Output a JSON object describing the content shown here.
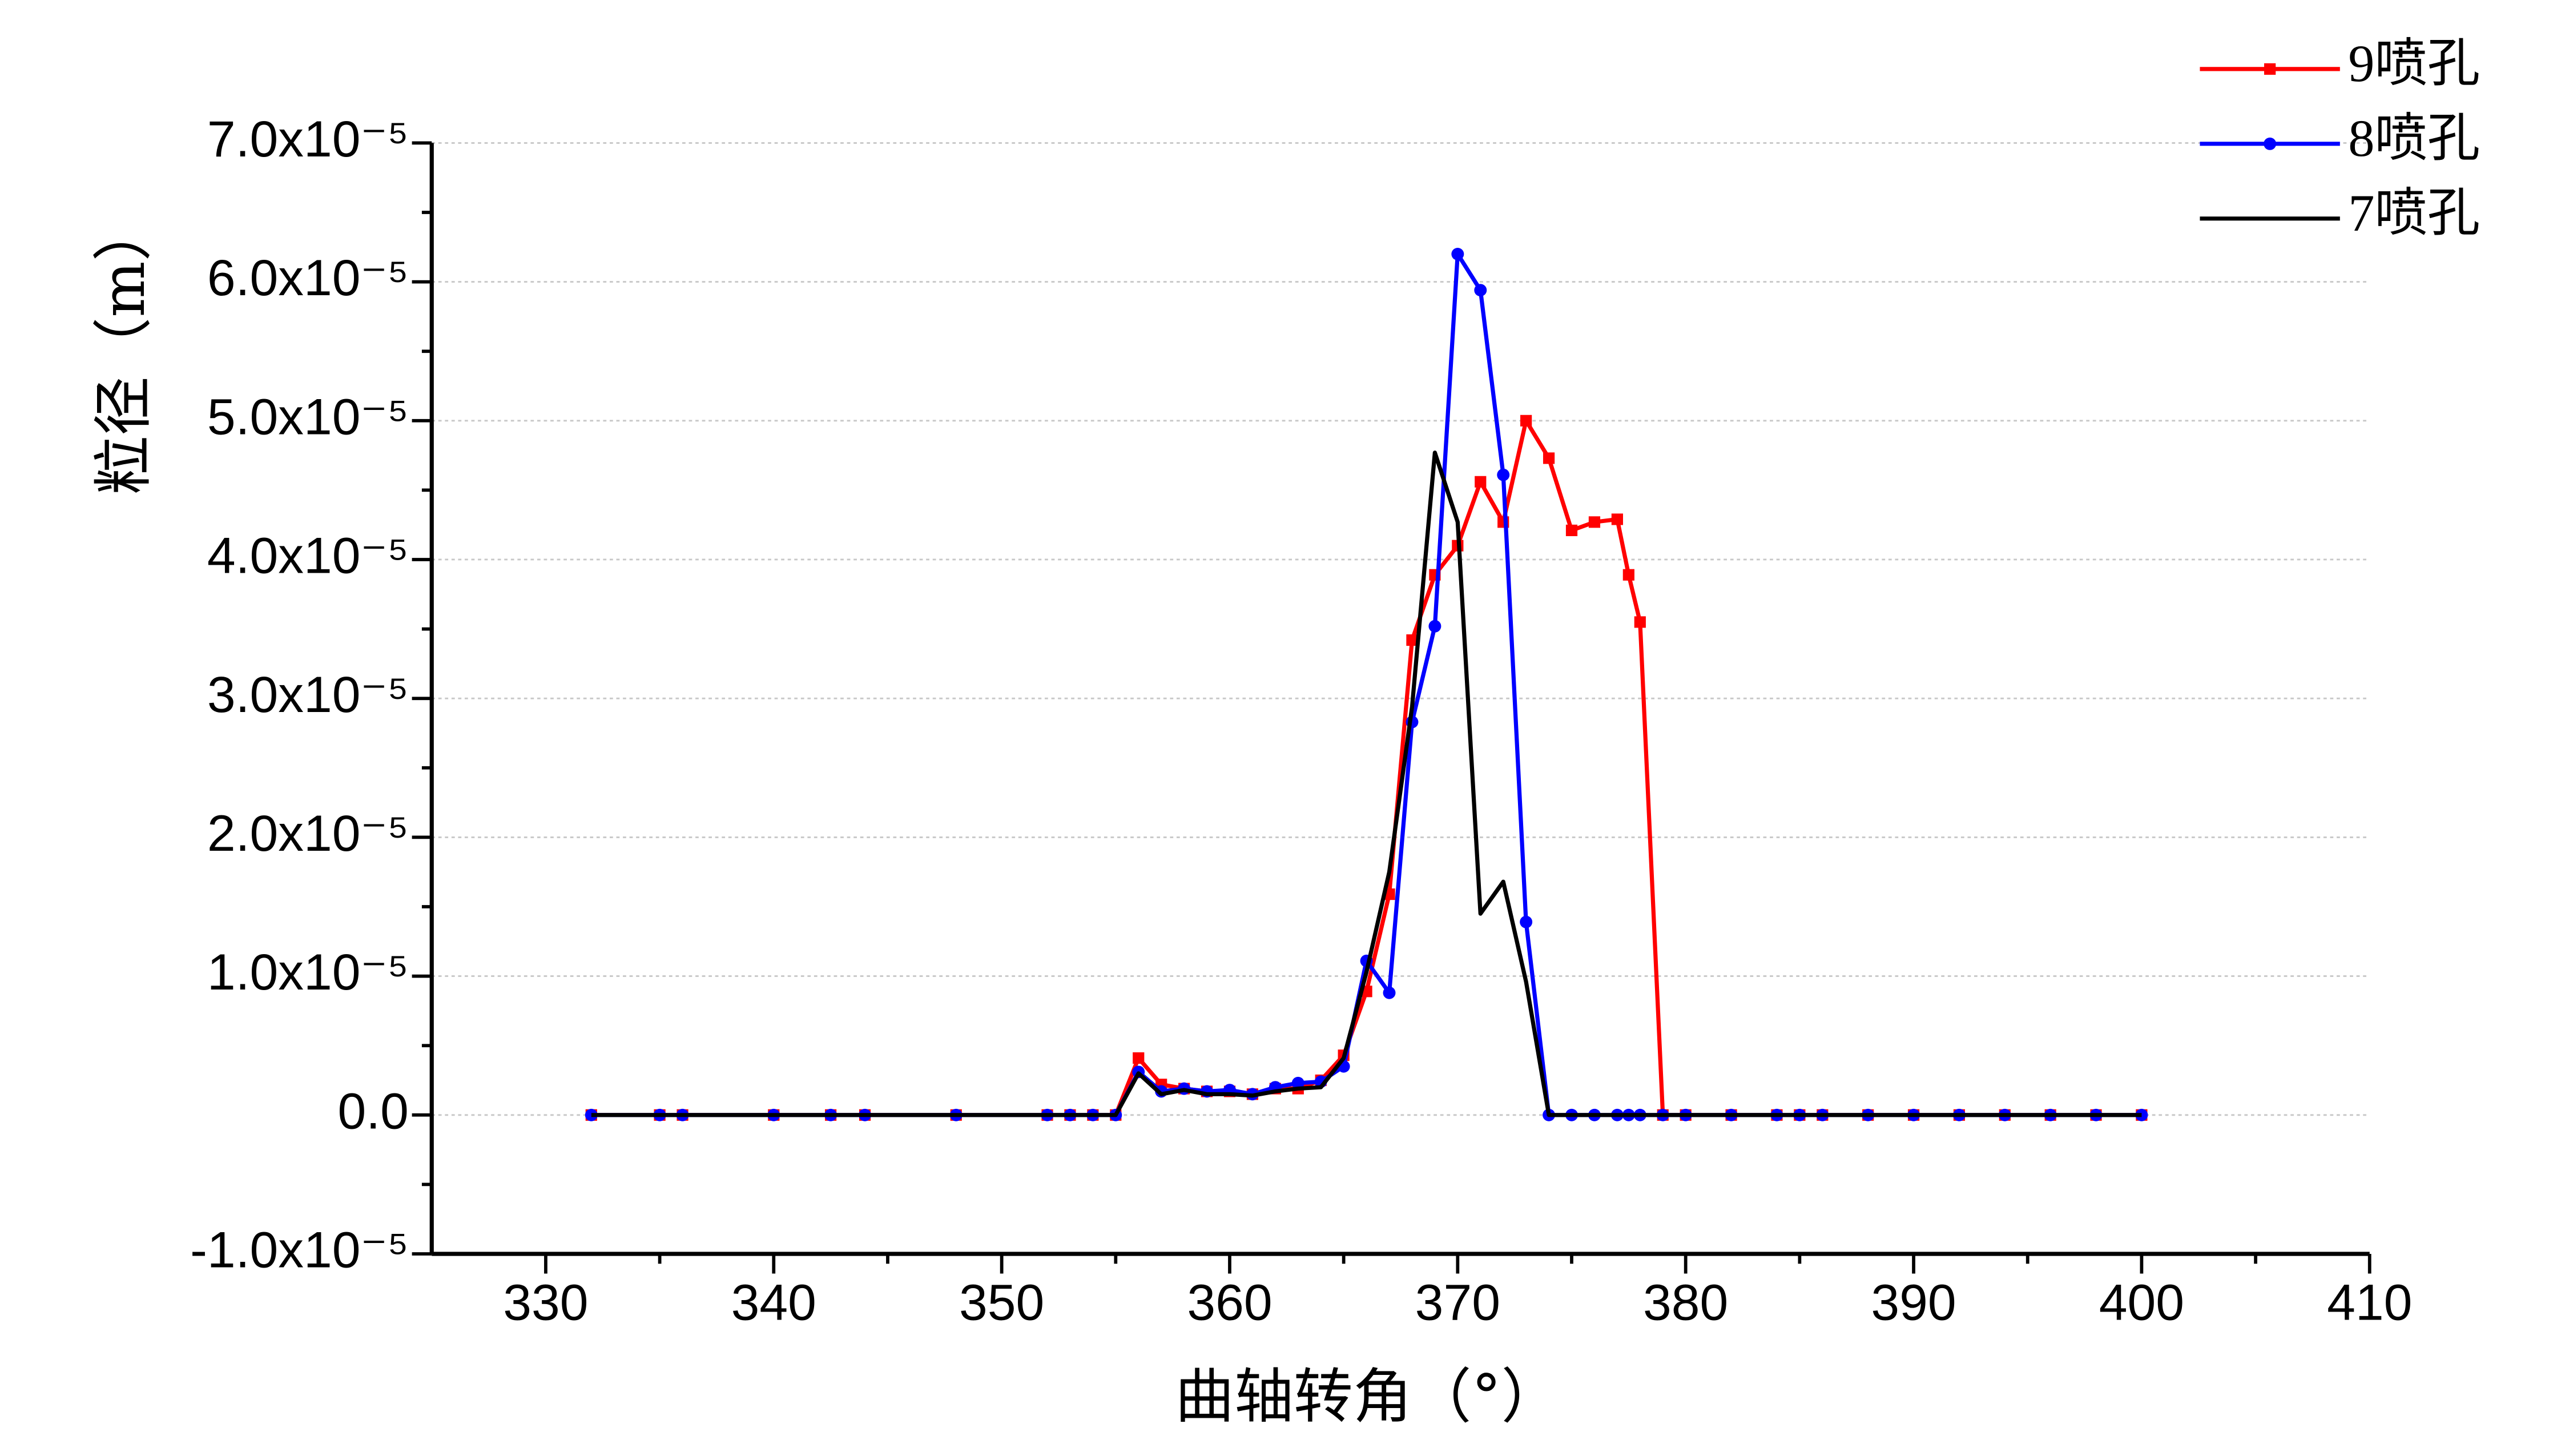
{
  "chart_data": {
    "type": "line",
    "x_label": "曲轴转角（°）",
    "y_label": "粒径（m）",
    "x": [
      332,
      335,
      336,
      340,
      342.5,
      344,
      348,
      352,
      353,
      354,
      355,
      356,
      357,
      358,
      359,
      360,
      361,
      362,
      363,
      364,
      365,
      366,
      367,
      368,
      369,
      370,
      371,
      372,
      373,
      374,
      375,
      376,
      377,
      377.5,
      378,
      379,
      380,
      382,
      384,
      385,
      386,
      388,
      390,
      392,
      394,
      396,
      398,
      400
    ],
    "series": [
      {
        "name": "9喷孔",
        "color": "#ff0000",
        "marker": "square",
        "values": [
          0,
          0,
          0,
          0,
          0,
          0,
          0,
          0,
          0,
          0,
          0,
          4.1e-06,
          2.2e-06,
          1.9e-06,
          1.7e-06,
          1.7e-06,
          1.5e-06,
          1.9e-06,
          1.9e-06,
          2.5e-06,
          4.3e-06,
          8.9e-06,
          1.59e-05,
          3.42e-05,
          3.89e-05,
          4.1e-05,
          4.56e-05,
          4.27e-05,
          5e-05,
          4.73e-05,
          4.21e-05,
          4.27e-05,
          4.29e-05,
          3.89e-05,
          3.55e-05,
          0,
          0,
          0,
          0,
          0,
          0,
          0,
          0,
          0,
          0,
          0,
          0,
          0
        ]
      },
      {
        "name": "8喷孔",
        "color": "#0000ff",
        "marker": "circle",
        "values": [
          0,
          0,
          0,
          0,
          0,
          0,
          0,
          0,
          0,
          0,
          0,
          3.1e-06,
          1.7e-06,
          1.9e-06,
          1.7e-06,
          1.8e-06,
          1.5e-06,
          2e-06,
          2.3e-06,
          2.4e-06,
          3.5e-06,
          1.11e-05,
          8.8e-06,
          2.83e-05,
          3.52e-05,
          6.2e-05,
          5.94e-05,
          4.61e-05,
          1.39e-05,
          0,
          0,
          0,
          0,
          0,
          0,
          0,
          0,
          0,
          0,
          0,
          0,
          0,
          0,
          0,
          0,
          0,
          0,
          0
        ]
      },
      {
        "name": "7喷孔",
        "color": "#000000",
        "marker": "none",
        "values": [
          0,
          0,
          0,
          0,
          0,
          0,
          0,
          0,
          0,
          0,
          0,
          3e-06,
          1.5e-06,
          1.8e-06,
          1.5e-06,
          1.5e-06,
          1.4e-06,
          1.7e-06,
          1.9e-06,
          2e-06,
          4.1e-06,
          1.03e-05,
          1.75e-05,
          2.94e-05,
          4.77e-05,
          4.27e-05,
          1.45e-05,
          1.68e-05,
          9.6e-06,
          0,
          0,
          0,
          0,
          0,
          0,
          0,
          0,
          0,
          0,
          0,
          0,
          0,
          0,
          0,
          0,
          0,
          0,
          0
        ]
      }
    ],
    "xlim": [
      325,
      410
    ],
    "xticks": [
      330,
      340,
      350,
      360,
      370,
      380,
      390,
      400,
      410
    ],
    "ylim": [
      -1e-05,
      7e-05
    ],
    "yticks": [
      {
        "value": -1e-05,
        "label": "-1.0x10⁻⁵"
      },
      {
        "value": 0,
        "label": "0.0"
      },
      {
        "value": 1e-05,
        "label": "1.0x10⁻⁵"
      },
      {
        "value": 2e-05,
        "label": "2.0x10⁻⁵"
      },
      {
        "value": 3e-05,
        "label": "3.0x10⁻⁵"
      },
      {
        "value": 4e-05,
        "label": "4.0x10⁻⁵"
      },
      {
        "value": 5e-05,
        "label": "5.0x10⁻⁵"
      },
      {
        "value": 6e-05,
        "label": "6.0x10⁻⁵"
      },
      {
        "value": 7e-05,
        "label": "7.0x10⁻⁵"
      }
    ],
    "grid": true,
    "legend": "top-right"
  }
}
